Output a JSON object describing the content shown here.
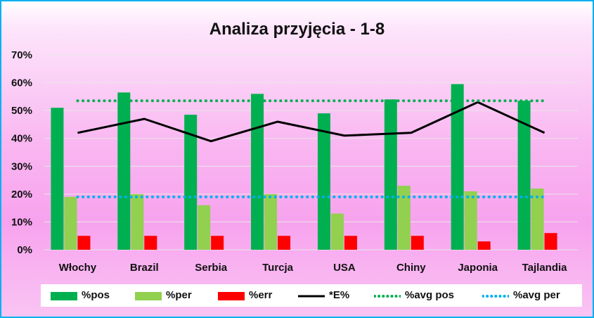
{
  "chart_data": {
    "type": "bar",
    "title": "Analiza przyjęcia - 1-8",
    "categories": [
      "Włochy",
      "Brazil",
      "Serbia",
      "Turcja",
      "USA",
      "Chiny",
      "Japonia",
      "Tajlandia"
    ],
    "ylim": [
      0,
      0.7
    ],
    "yticks": [
      "0%",
      "10%",
      "20%",
      "30%",
      "40%",
      "50%",
      "60%",
      "70%"
    ],
    "grid": true,
    "legend_position": "bottom",
    "series": [
      {
        "name": "%pos",
        "type": "bar",
        "color": "#00b050",
        "values": [
          0.51,
          0.565,
          0.485,
          0.56,
          0.49,
          0.54,
          0.595,
          0.535
        ]
      },
      {
        "name": "%per",
        "type": "bar",
        "color": "#92d050",
        "values": [
          0.19,
          0.2,
          0.16,
          0.2,
          0.13,
          0.23,
          0.21,
          0.22
        ]
      },
      {
        "name": "%err",
        "type": "bar",
        "color": "#ff0000",
        "values": [
          0.05,
          0.05,
          0.05,
          0.05,
          0.05,
          0.05,
          0.03,
          0.06
        ]
      },
      {
        "name": "*E%",
        "type": "line",
        "color": "#000000",
        "values": [
          0.42,
          0.47,
          0.39,
          0.46,
          0.41,
          0.42,
          0.53,
          0.42
        ]
      },
      {
        "name": "%avg pos",
        "type": "dotted-line",
        "color": "#00b050",
        "values": [
          0.535,
          0.535,
          0.535,
          0.535,
          0.535,
          0.535,
          0.535,
          0.535
        ]
      },
      {
        "name": "%avg per",
        "type": "dotted-line",
        "color": "#00b0f0",
        "values": [
          0.19,
          0.19,
          0.19,
          0.19,
          0.19,
          0.19,
          0.19,
          0.19
        ]
      }
    ]
  }
}
